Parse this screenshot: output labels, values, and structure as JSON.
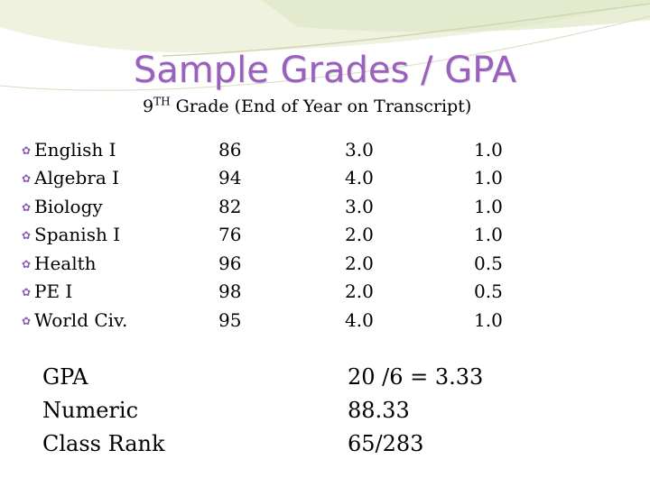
{
  "slide": {
    "title": "Sample Grades / GPA",
    "subtitle_number": "9",
    "subtitle_sup": "TH",
    "subtitle_rest": " Grade (End of Year on Transcript)"
  },
  "courses": [
    {
      "name": "English I",
      "grade": "86",
      "points": "3.0",
      "credits": "1.0"
    },
    {
      "name": "Algebra I",
      "grade": "94",
      "points": "4.0",
      "credits": "1.0"
    },
    {
      "name": "Biology",
      "grade": "82",
      "points": "3.0",
      "credits": "1.0"
    },
    {
      "name": "Spanish I",
      "grade": "76",
      "points": "2.0",
      "credits": "1.0"
    },
    {
      "name": "Health",
      "grade": "96",
      "points": "2.0",
      "credits": "0.5"
    },
    {
      "name": "PE I",
      "grade": "98",
      "points": "2.0",
      "credits": "0.5"
    },
    {
      "name": "World Civ.",
      "grade": "95",
      "points": "4.0",
      "credits": "1.0"
    }
  ],
  "summary": {
    "labels": [
      "GPA",
      "Numeric",
      "Class Rank"
    ],
    "values": [
      "20 /6 = 3.33",
      "88.33",
      "65/283"
    ]
  },
  "theme": {
    "title_color": "#9b5fc0",
    "bullet_color": "#8e5bb5",
    "swoosh_color": "#e6ecd2"
  },
  "icons": {
    "bullet": "purple-curl-bullet-icon"
  }
}
